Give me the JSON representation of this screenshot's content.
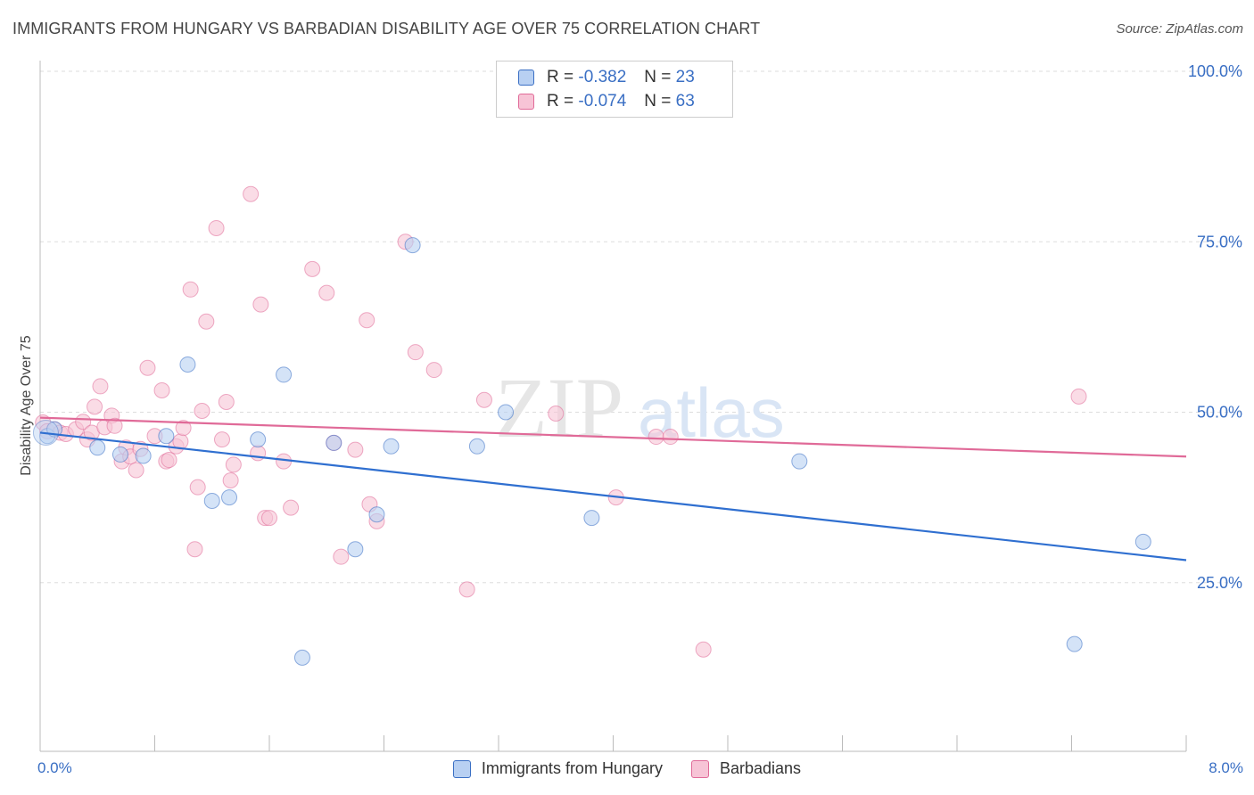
{
  "title": "IMMIGRANTS FROM HUNGARY VS BARBADIAN DISABILITY AGE OVER 75 CORRELATION CHART",
  "source": "Source: ZipAtlas.com",
  "watermark": {
    "zip": "ZIP",
    "atlas": "atlas"
  },
  "colors": {
    "blue": "#3a6fc4",
    "blue_fill": "#b8d0f2",
    "blue_line": "#2f6fd0",
    "pink": "#e06a98",
    "pink_fill": "#f7c4d6",
    "grid": "#dddddd"
  },
  "legend": {
    "rows": [
      {
        "r_label": "R =",
        "r_value": "-0.382",
        "n_label": "N =",
        "n_value": "23"
      },
      {
        "r_label": "R =",
        "r_value": "-0.074",
        "n_label": "N =",
        "n_value": "63"
      }
    ]
  },
  "chart_data": {
    "type": "scatter",
    "title": "IMMIGRANTS FROM HUNGARY VS BARBADIAN DISABILITY AGE OVER 75 CORRELATION CHART",
    "xlabel": "",
    "ylabel": "Disability Age Over 75",
    "xlim": [
      0,
      8
    ],
    "ylim": [
      0,
      100
    ],
    "x_tick_labels": [
      "0.0%",
      "8.0%"
    ],
    "y_ticks": [
      25,
      50,
      75,
      100
    ],
    "y_tick_labels": [
      "25.0%",
      "50.0%",
      "75.0%",
      "100.0%"
    ],
    "grid": true,
    "legend_position": "bottom-center",
    "series": [
      {
        "name": "Immigrants from Hungary",
        "color": "#3a6fc4",
        "points": [
          [
            0.05,
            46.5
          ],
          [
            0.1,
            47.5
          ],
          [
            0.4,
            44.8
          ],
          [
            0.56,
            43.8
          ],
          [
            0.72,
            43.6
          ],
          [
            0.88,
            46.5
          ],
          [
            1.03,
            57.0
          ],
          [
            1.2,
            37.0
          ],
          [
            1.32,
            37.5
          ],
          [
            1.52,
            46.0
          ],
          [
            1.7,
            55.5
          ],
          [
            2.05,
            45.5
          ],
          [
            2.2,
            29.9
          ],
          [
            2.35,
            35.0
          ],
          [
            2.45,
            45.0
          ],
          [
            2.6,
            74.5
          ],
          [
            3.05,
            45.0
          ],
          [
            3.25,
            50.0
          ],
          [
            3.85,
            34.5
          ],
          [
            5.3,
            42.8
          ],
          [
            7.7,
            31.0
          ],
          [
            1.83,
            14.0
          ],
          [
            7.22,
            16.0
          ]
        ],
        "trend": [
          [
            0,
            47.0
          ],
          [
            8,
            28.3
          ]
        ]
      },
      {
        "name": "Barbadians",
        "color": "#e06a98",
        "points": [
          [
            0.02,
            48.5
          ],
          [
            0.05,
            47.2
          ],
          [
            0.1,
            47.5
          ],
          [
            0.14,
            47.0
          ],
          [
            0.18,
            46.8
          ],
          [
            0.25,
            47.5
          ],
          [
            0.3,
            48.6
          ],
          [
            0.33,
            46.0
          ],
          [
            0.36,
            47.0
          ],
          [
            0.38,
            50.8
          ],
          [
            0.42,
            53.8
          ],
          [
            0.45,
            47.8
          ],
          [
            0.5,
            49.5
          ],
          [
            0.52,
            48.0
          ],
          [
            0.57,
            42.8
          ],
          [
            0.6,
            44.8
          ],
          [
            0.63,
            43.5
          ],
          [
            0.67,
            41.5
          ],
          [
            0.75,
            56.5
          ],
          [
            0.8,
            46.5
          ],
          [
            0.85,
            53.2
          ],
          [
            0.88,
            42.8
          ],
          [
            0.9,
            43.0
          ],
          [
            0.95,
            45.0
          ],
          [
            0.98,
            45.7
          ],
          [
            1.0,
            47.7
          ],
          [
            1.05,
            68.0
          ],
          [
            1.08,
            29.9
          ],
          [
            1.1,
            39.0
          ],
          [
            1.16,
            63.3
          ],
          [
            1.23,
            77.0
          ],
          [
            1.27,
            46.0
          ],
          [
            1.3,
            51.5
          ],
          [
            1.33,
            40.0
          ],
          [
            1.35,
            42.3
          ],
          [
            1.47,
            82.0
          ],
          [
            1.52,
            44.0
          ],
          [
            1.54,
            65.8
          ],
          [
            1.57,
            34.5
          ],
          [
            1.6,
            34.5
          ],
          [
            1.7,
            42.8
          ],
          [
            1.75,
            36.0
          ],
          [
            1.9,
            71.0
          ],
          [
            2.0,
            67.5
          ],
          [
            2.05,
            45.5
          ],
          [
            2.1,
            28.8
          ],
          [
            2.2,
            44.5
          ],
          [
            2.28,
            63.5
          ],
          [
            2.3,
            36.5
          ],
          [
            2.35,
            34.0
          ],
          [
            2.55,
            75.0
          ],
          [
            2.62,
            58.8
          ],
          [
            2.75,
            56.2
          ],
          [
            2.98,
            24.0
          ],
          [
            3.1,
            51.8
          ],
          [
            3.6,
            49.8
          ],
          [
            4.02,
            37.5
          ],
          [
            4.3,
            46.4
          ],
          [
            4.4,
            46.4
          ],
          [
            4.63,
            15.2
          ],
          [
            7.25,
            52.3
          ],
          [
            1.13,
            50.2
          ],
          [
            0.7,
            44.6
          ]
        ],
        "trend": [
          [
            0,
            49.2
          ],
          [
            8,
            43.5
          ]
        ]
      }
    ]
  }
}
